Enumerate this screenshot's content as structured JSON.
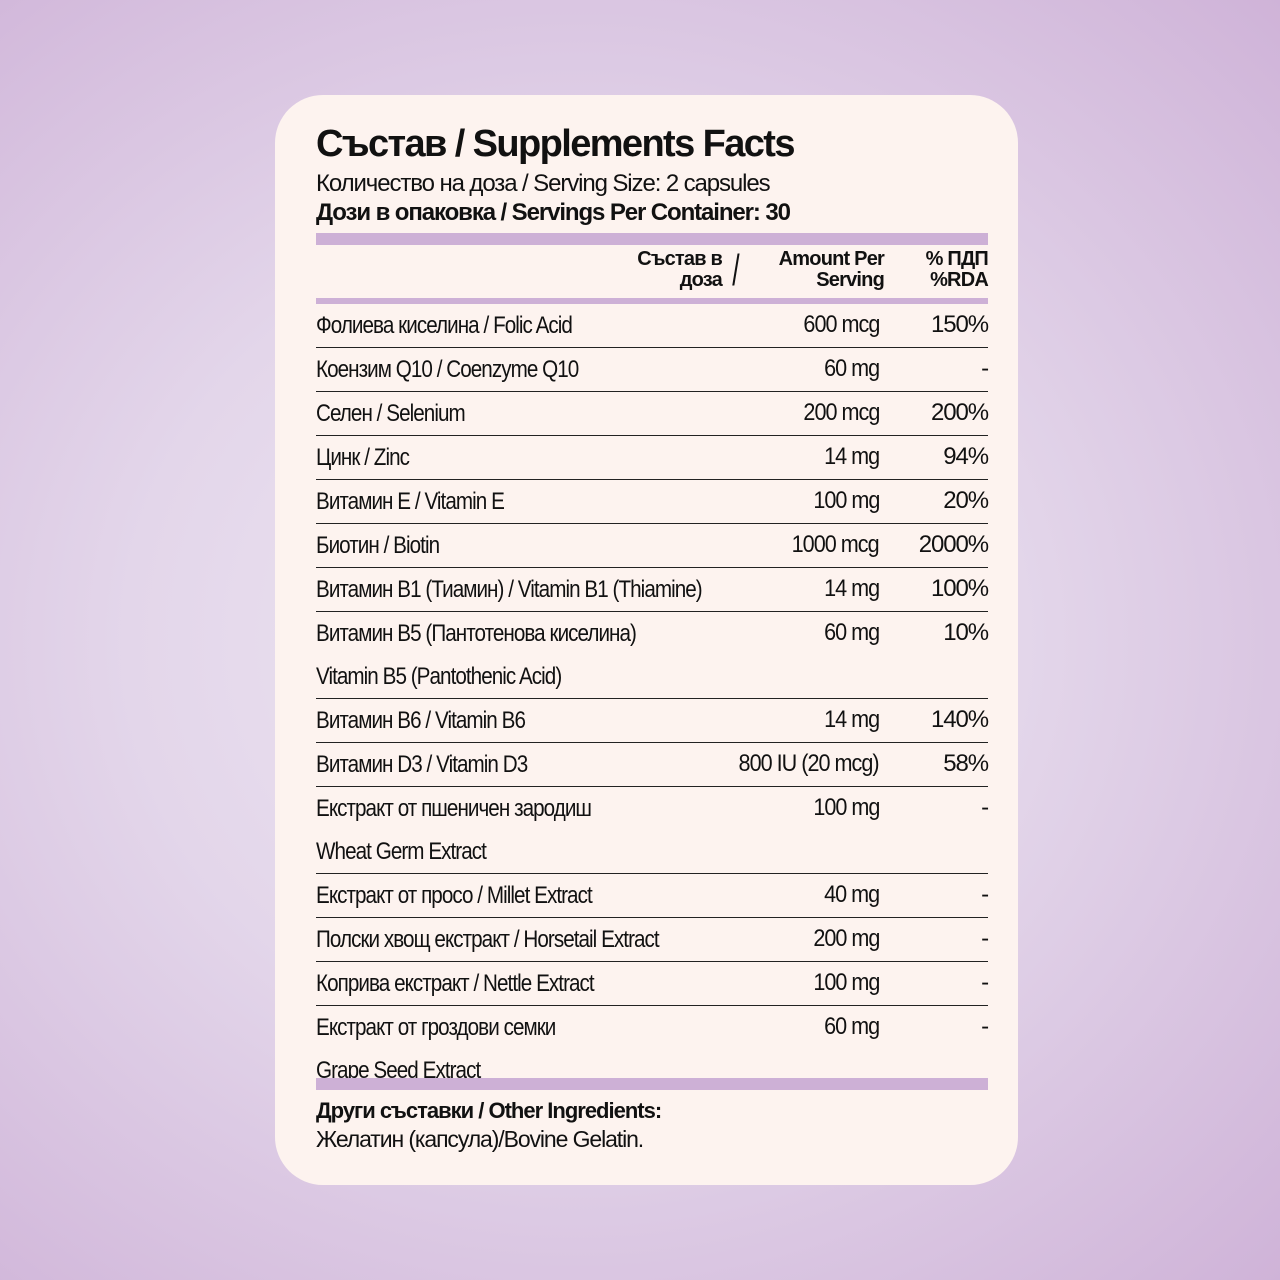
{
  "title": "Състав / Supplements Facts",
  "serving_size": "Количество на доза / Serving Size: 2 capsules",
  "servings_per_container": "Дози в опаковка / Servings Per Container: 30",
  "header": {
    "amount_bg_1": "Състав в",
    "amount_bg_2": "доза",
    "slash": "/",
    "amount_en_1": "Amount Per",
    "amount_en_2": "Serving",
    "rda_1": "% ПДП",
    "rda_2": "%RDA"
  },
  "rows": [
    {
      "name": "Фолиева киселина / Folic Acid",
      "amount": "600 mcg",
      "rda": "150%"
    },
    {
      "name": "Коензим Q10 / Coenzyme Q10",
      "amount": "60 mg",
      "rda": "-"
    },
    {
      "name": "Селен / Selenium",
      "amount": "200 mcg",
      "rda": "200%"
    },
    {
      "name": "Цинк / Zinc",
      "amount": "14 mg",
      "rda": "94%"
    },
    {
      "name": "Витамин Е / Vitamin E",
      "amount": "100 mg",
      "rda": "20%"
    },
    {
      "name": "Биотин / Biotin",
      "amount": "1000 mcg",
      "rda": "2000%"
    },
    {
      "name": "Витамин В1 (Тиамин) / Vitamin B1 (Thiamine)",
      "amount": "14 mg",
      "rda": "100%"
    },
    {
      "name": "Витамин В5 (Пантотенова киселина)",
      "name2": "Vitamin B5 (Pantothenic Acid)",
      "amount": "60 mg",
      "rda": "10%"
    },
    {
      "name": "Витамин В6 / Vitamin B6",
      "amount": "14 mg",
      "rda": "140%"
    },
    {
      "name": "Витамин D3 / Vitamin D3",
      "amount": "800 IU (20 mcg)",
      "rda": "58%"
    },
    {
      "name": "Екстракт от пшеничен зародиш",
      "name2": "Wheat Germ Extract",
      "amount": "100 mg",
      "rda": "-"
    },
    {
      "name": "Екстракт от просо / Millet Extract",
      "amount": "40 mg",
      "rda": "-"
    },
    {
      "name": "Полски хвощ екстракт / Horsetail Extract",
      "amount": "200 mg",
      "rda": "-"
    },
    {
      "name": "Коприва екстракт / Nettle Extract",
      "amount": "100 mg",
      "rda": "-"
    },
    {
      "name": "Екстракт от гроздови семки",
      "name2": "Grape Seed Extract",
      "amount": "60 mg",
      "rda": "-"
    }
  ],
  "other_ingredients": {
    "label": "Други съставки / Other Ingredients:",
    "value": "Желатин (капсула)/Bovine Gelatin."
  },
  "colors": {
    "accent_bar": "#cdb0d6",
    "card": "#fdf3ef",
    "background": "#e3d6ea"
  }
}
